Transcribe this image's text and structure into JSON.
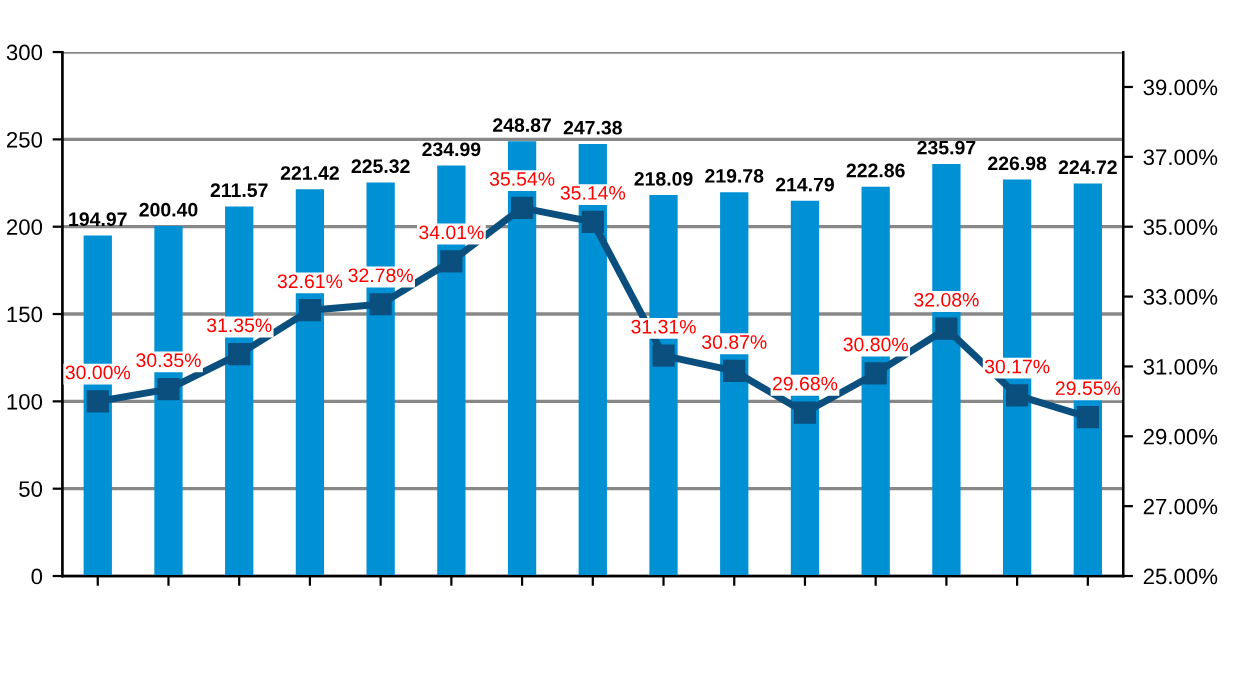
{
  "chart_data": {
    "type": "bar",
    "categories": [
      null,
      null,
      null,
      null,
      null,
      null,
      null,
      null,
      null,
      null,
      null,
      null,
      null,
      null,
      null
    ],
    "series": [
      {
        "color": "#0091d5",
        "values": [
          194.97,
          200.4,
          211.57,
          221.42,
          225.32,
          234.99,
          248.87,
          247.38,
          218.09,
          219.78,
          214.79,
          222.86,
          235.97,
          226.98,
          224.72
        ],
        "value_labels": [
          "194.97",
          "200.40",
          "211.57",
          "221.42",
          "225.32",
          "234.99",
          "248.87",
          "247.38",
          "218.09",
          "219.78",
          "214.79",
          "222.86",
          "235.97",
          "226.98",
          "224.72"
        ]
      },
      {
        "type": "line",
        "axis": "y2",
        "color": "#0b4f7e",
        "marker": "square",
        "values": [
          30.0,
          30.35,
          31.35,
          32.61,
          32.78,
          34.01,
          35.54,
          35.14,
          31.31,
          30.87,
          29.68,
          30.8,
          32.08,
          30.17,
          29.55
        ],
        "value_labels": [
          "30.00%",
          "30.35%",
          "31.35%",
          "32.61%",
          "32.78%",
          "34.01%",
          "35.54%",
          "35.14%",
          "31.31%",
          "30.87%",
          "29.68%",
          "30.80%",
          "32.08%",
          "30.17%",
          "29.55%"
        ]
      }
    ],
    "ylim": [
      0,
      300
    ],
    "yticks": [
      0,
      50,
      100,
      150,
      200,
      250,
      300
    ],
    "y2lim": [
      25,
      40
    ],
    "y2ticks": [
      {
        "value": 25,
        "label": "25.00%"
      },
      {
        "value": 27,
        "label": "27.00%"
      },
      {
        "value": 29,
        "label": "29.00%"
      },
      {
        "value": 31,
        "label": "31.00%"
      },
      {
        "value": 33,
        "label": "33.00%"
      },
      {
        "value": 35,
        "label": "35.00%"
      },
      {
        "value": 37,
        "label": "37.00%"
      },
      {
        "value": 39,
        "label": "39.00%"
      }
    ],
    "grid": "y"
  }
}
